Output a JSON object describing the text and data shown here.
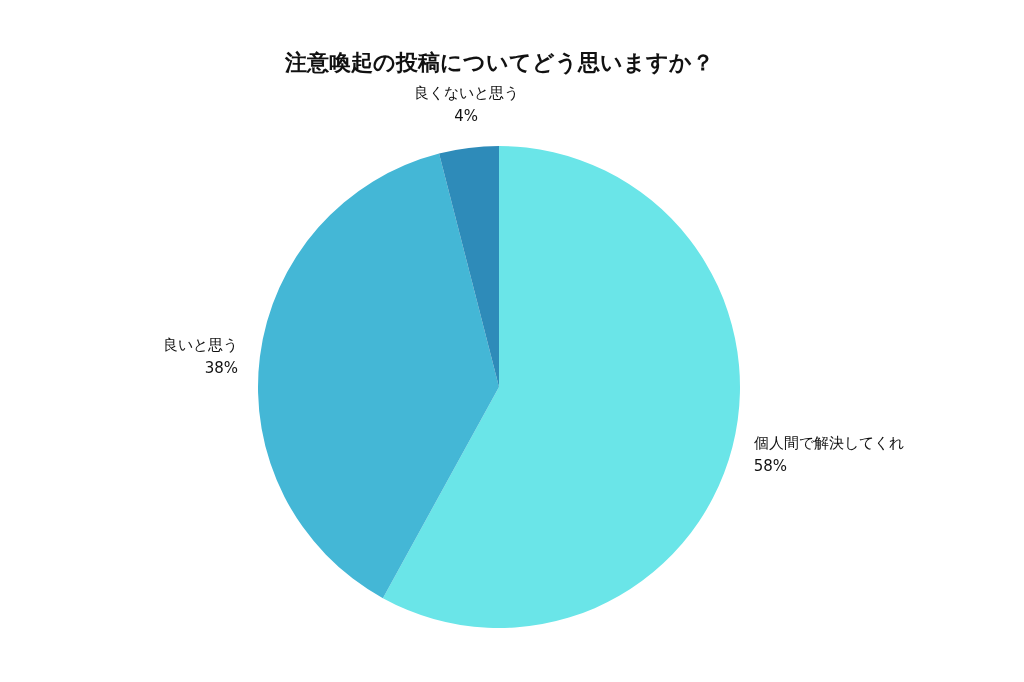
{
  "chart_data": {
    "type": "pie",
    "title": "注意喚起の投稿についてどう思いますか？",
    "categories": [
      "個人間で解決してくれ",
      "良いと思う",
      "良くないと思う"
    ],
    "values": [
      58,
      38,
      4
    ],
    "value_labels": [
      "58%",
      "38%",
      "4%"
    ],
    "colors": [
      "#6ae5e8",
      "#44b7d6",
      "#2e8bb9"
    ]
  }
}
